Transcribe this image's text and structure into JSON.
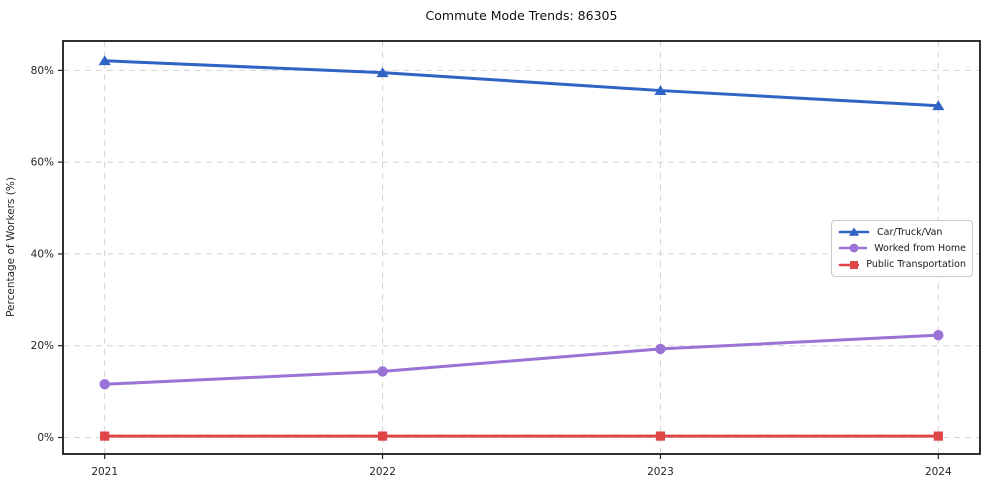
{
  "title": "Commute Mode Trends: 86305",
  "chart_data": {
    "type": "line",
    "title": "Commute Mode Trends: 86305",
    "xlabel": "",
    "ylabel": "Percentage of Workers (%)",
    "x": [
      2021,
      2022,
      2023,
      2024
    ],
    "x_tick_labels": [
      "2021",
      "2022",
      "2023",
      "2024"
    ],
    "y_ticks": [
      0,
      20,
      40,
      60,
      80
    ],
    "y_tick_labels": [
      "0%",
      "20%",
      "40%",
      "60%",
      "80%"
    ],
    "xlim": [
      2020.85,
      2024.15
    ],
    "ylim": [
      -3.6,
      86.4
    ],
    "grid": true,
    "grid_style": "dashed",
    "legend_position": "center-right",
    "series": [
      {
        "name": "Car/Truck/Van",
        "marker": "triangle",
        "color": "#2f63c5",
        "values": [
          82.1,
          79.5,
          75.6,
          72.3
        ]
      },
      {
        "name": "Worked from Home",
        "marker": "circle",
        "color": "#9a73d6",
        "values": [
          11.6,
          14.4,
          19.3,
          22.3
        ]
      },
      {
        "name": "Public Transportation",
        "marker": "square",
        "color": "#df4547",
        "values": [
          0.3,
          0.3,
          0.3,
          0.3
        ]
      }
    ]
  }
}
